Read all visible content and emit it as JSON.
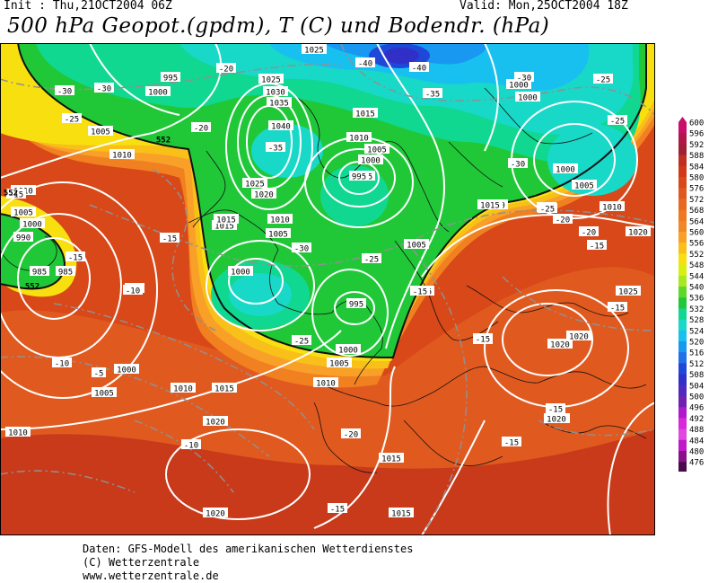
{
  "header": {
    "init": "Init : Thu,21OCT2004 06Z",
    "valid": "Valid: Mon,25OCT2004 18Z",
    "title": "500 hPa Geopot.(gpdm), T (C) und Bodendr. (hPa)"
  },
  "map": {
    "pressure_labels": [
      {
        "text": "1025"
      },
      {
        "text": "1000"
      },
      {
        "text": "995"
      },
      {
        "text": "1000"
      },
      {
        "text": "1025"
      },
      {
        "text": "1030"
      },
      {
        "text": "1035"
      },
      {
        "text": "1040"
      },
      {
        "text": "1005"
      },
      {
        "text": "1010"
      },
      {
        "text": "1015"
      },
      {
        "text": "1010"
      },
      {
        "text": "1005"
      },
      {
        "text": "1000"
      },
      {
        "text": "995"
      },
      {
        "text": "1025"
      },
      {
        "text": "1020"
      },
      {
        "text": "1010"
      },
      {
        "text": "1005"
      },
      {
        "text": "1000"
      },
      {
        "text": "995"
      },
      {
        "text": "990"
      },
      {
        "text": "985"
      },
      {
        "text": "1015"
      },
      {
        "text": "1010"
      },
      {
        "text": "1005"
      },
      {
        "text": "1000"
      },
      {
        "text": "1010"
      },
      {
        "text": "1000"
      },
      {
        "text": "995"
      },
      {
        "text": "1000"
      },
      {
        "text": "1005"
      },
      {
        "text": "985"
      },
      {
        "text": "1000"
      },
      {
        "text": "1005"
      },
      {
        "text": "1010"
      },
      {
        "text": "1010"
      },
      {
        "text": "1015"
      },
      {
        "text": "1020"
      },
      {
        "text": "1010"
      },
      {
        "text": "1020"
      },
      {
        "text": "1015"
      },
      {
        "text": "1015"
      },
      {
        "text": "1020"
      },
      {
        "text": "1005"
      },
      {
        "text": "1000"
      },
      {
        "text": "1010"
      },
      {
        "text": "1015"
      },
      {
        "text": "1010"
      },
      {
        "text": "1005"
      },
      {
        "text": "1020"
      },
      {
        "text": "1025"
      },
      {
        "text": "1020"
      },
      {
        "text": "1020"
      },
      {
        "text": "1020"
      },
      {
        "text": "1015"
      }
    ],
    "temp_labels": [
      {
        "text": "-30"
      },
      {
        "text": "-30"
      },
      {
        "text": "-25"
      },
      {
        "text": "-20"
      },
      {
        "text": "-40"
      },
      {
        "text": "-40"
      },
      {
        "text": "-35"
      },
      {
        "text": "-30"
      },
      {
        "text": "-25"
      },
      {
        "text": "-25"
      },
      {
        "text": "-20"
      },
      {
        "text": "-35"
      },
      {
        "text": "-30"
      },
      {
        "text": "-25"
      },
      {
        "text": "-20"
      },
      {
        "text": "-25"
      },
      {
        "text": "-20"
      },
      {
        "text": "-15"
      },
      {
        "text": "-15"
      },
      {
        "text": "-15"
      },
      {
        "text": "-10"
      },
      {
        "text": "-15"
      },
      {
        "text": "-10"
      },
      {
        "text": "-5"
      },
      {
        "text": "-15"
      },
      {
        "text": "-20"
      },
      {
        "text": "-30"
      },
      {
        "text": "-25"
      },
      {
        "text": "-15"
      },
      {
        "text": "-15"
      },
      {
        "text": "-15"
      },
      {
        "text": "-10"
      },
      {
        "text": "-15"
      },
      {
        "text": "-15"
      },
      {
        "text": "-15"
      },
      {
        "text": "-20"
      },
      {
        "text": "-15"
      },
      {
        "text": "-10"
      },
      {
        "text": "-25"
      },
      {
        "text": "-15"
      }
    ],
    "geopot_labels": [
      {
        "text": "552"
      },
      {
        "text": "552"
      },
      {
        "text": "552"
      }
    ],
    "palette": [
      "#4b0a4b",
      "#7a1078",
      "#a010a0",
      "#c818c8",
      "#e030e0",
      "#7020b0",
      "#3030c8",
      "#2058e0",
      "#1898f0",
      "#18c0f0",
      "#18d8c0",
      "#10d890",
      "#20c830",
      "#70d828",
      "#b8e820",
      "#f0f010",
      "#f8d010",
      "#f8b010",
      "#f89828",
      "#f08020",
      "#e86820",
      "#e05020",
      "#d84018",
      "#c03020",
      "#a82040",
      "#c01060"
    ]
  },
  "legend": {
    "values": [
      "600",
      "596",
      "592",
      "588",
      "584",
      "580",
      "576",
      "572",
      "568",
      "564",
      "560",
      "556",
      "552",
      "548",
      "544",
      "540",
      "536",
      "532",
      "528",
      "524",
      "520",
      "516",
      "512",
      "508",
      "504",
      "500",
      "496",
      "492",
      "488",
      "484",
      "480",
      "476"
    ],
    "colors": [
      "#c8106a",
      "#b01848",
      "#a02038",
      "#c03020",
      "#d03818",
      "#d84818",
      "#e05820",
      "#e86820",
      "#f07820",
      "#f08828",
      "#f8a028",
      "#f8c018",
      "#f8e010",
      "#d8f010",
      "#a8e820",
      "#60d828",
      "#20c838",
      "#10d890",
      "#18d8c8",
      "#18c0f0",
      "#1898f0",
      "#2070e8",
      "#2048d8",
      "#3030c8",
      "#5028c0",
      "#7020b0",
      "#b018d0",
      "#d828d8",
      "#e048e0",
      "#c018c8",
      "#8a108a",
      "#4b0a4b"
    ]
  },
  "footer": {
    "line1": "Daten: GFS-Modell des amerikanischen Wetterdienstes",
    "line2": "(C) Wetterzentrale",
    "line3": "www.wetterzentrale.de"
  }
}
